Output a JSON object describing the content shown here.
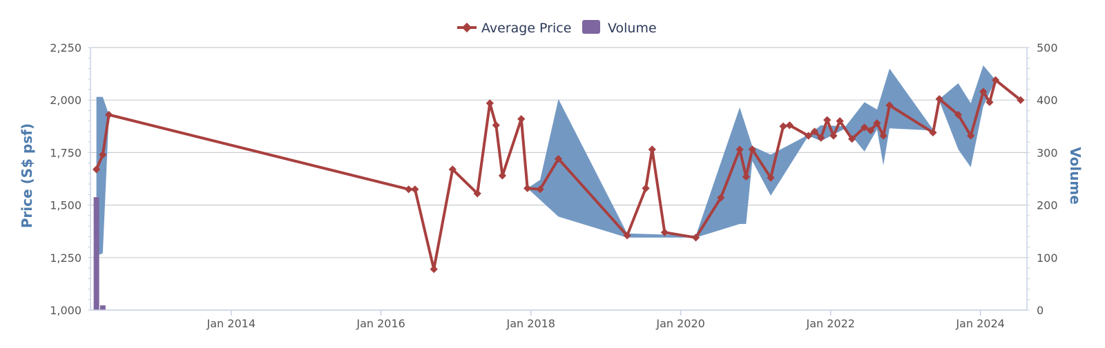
{
  "chart_data": {
    "type": "line",
    "title": "",
    "legend": {
      "placement": "top-center"
    },
    "grid": true,
    "colors": {
      "price": "#a8403f",
      "range": "#6b93c0",
      "volume": "#7e66a0",
      "grid": "#c8ccd2",
      "axis_title": "#4f7cae"
    },
    "y_left": {
      "label": "Price (S$ psf)",
      "range": [
        1000,
        2250
      ],
      "ticks": [
        "1,000",
        "1,250",
        "1,500",
        "1,750",
        "2,000",
        "2,250"
      ]
    },
    "y_right": {
      "label": "Volume",
      "range": [
        0,
        500
      ],
      "ticks": [
        "0",
        "100",
        "200",
        "300",
        "400",
        "500"
      ]
    },
    "x": {
      "range": [
        "2012-02-15",
        "2024-08-15"
      ],
      "ticks": [
        {
          "date": "2014-01-01",
          "label": "Jan 2014"
        },
        {
          "date": "2016-01-01",
          "label": "Jan 2016"
        },
        {
          "date": "2018-01-01",
          "label": "Jan 2018"
        },
        {
          "date": "2020-01-01",
          "label": "Jan 2020"
        },
        {
          "date": "2022-01-01",
          "label": "Jan 2022"
        },
        {
          "date": "2024-01-01",
          "label": "Jan 2024"
        }
      ]
    },
    "series": [
      {
        "name": "Average Price",
        "kind": "line",
        "points": [
          [
            "2012-03",
            1670
          ],
          [
            "2012-04",
            1740
          ],
          [
            "2012-05",
            1930
          ],
          [
            "2016-05",
            1575
          ],
          [
            "2016-06",
            1575
          ],
          [
            "2016-09",
            1195
          ],
          [
            "2016-12",
            1670
          ],
          [
            "2017-04",
            1555
          ],
          [
            "2017-06",
            1985
          ],
          [
            "2017-07",
            1880
          ],
          [
            "2017-08",
            1640
          ],
          [
            "2017-11",
            1910
          ],
          [
            "2017-12",
            1580
          ],
          [
            "2018-02",
            1575
          ],
          [
            "2018-05",
            1720
          ],
          [
            "2019-04",
            1355
          ],
          [
            "2019-07",
            1580
          ],
          [
            "2019-08",
            1765
          ],
          [
            "2019-10",
            1370
          ],
          [
            "2020-03",
            1345
          ],
          [
            "2020-07",
            1535
          ],
          [
            "2020-10",
            1765
          ],
          [
            "2020-11",
            1635
          ],
          [
            "2020-12",
            1765
          ],
          [
            "2021-03",
            1630
          ],
          [
            "2021-05",
            1875
          ],
          [
            "2021-06",
            1880
          ],
          [
            "2021-09",
            1830
          ],
          [
            "2021-10",
            1850
          ],
          [
            "2021-11",
            1820
          ],
          [
            "2021-12",
            1905
          ],
          [
            "2022-01",
            1830
          ],
          [
            "2022-02",
            1900
          ],
          [
            "2022-04",
            1815
          ],
          [
            "2022-06",
            1870
          ],
          [
            "2022-07",
            1855
          ],
          [
            "2022-08",
            1890
          ],
          [
            "2022-09",
            1830
          ],
          [
            "2022-10",
            1975
          ],
          [
            "2023-05",
            1845
          ],
          [
            "2023-06",
            2005
          ],
          [
            "2023-09",
            1930
          ],
          [
            "2023-11",
            1830
          ],
          [
            "2024-01",
            2040
          ],
          [
            "2024-02",
            1990
          ],
          [
            "2024-03",
            2095
          ],
          [
            "2024-07",
            2000
          ]
        ]
      },
      {
        "name": "",
        "kind": "range",
        "upper": [
          [
            "2012-03",
            2015
          ],
          [
            "2012-04",
            2015
          ],
          [
            "2012-05",
            1930
          ],
          [
            "2017-12",
            1580
          ],
          [
            "2018-02",
            1620
          ],
          [
            "2018-05",
            2005
          ],
          [
            "2019-04",
            1365
          ],
          [
            "2020-03",
            1355
          ],
          [
            "2020-10",
            1965
          ],
          [
            "2020-12",
            1780
          ],
          [
            "2021-03",
            1740
          ],
          [
            "2021-09",
            1835
          ],
          [
            "2021-11",
            1880
          ],
          [
            "2022-03",
            1875
          ],
          [
            "2022-06",
            1990
          ],
          [
            "2022-08",
            1955
          ],
          [
            "2022-10",
            2150
          ],
          [
            "2023-05",
            1860
          ],
          [
            "2023-06",
            2005
          ],
          [
            "2023-09",
            2080
          ],
          [
            "2023-11",
            1985
          ],
          [
            "2024-01",
            2165
          ],
          [
            "2024-03",
            2095
          ]
        ],
        "lower": [
          [
            "2012-03",
            1260
          ],
          [
            "2012-04",
            1270
          ],
          [
            "2012-05",
            1930
          ],
          [
            "2017-12",
            1580
          ],
          [
            "2018-05",
            1445
          ],
          [
            "2019-04",
            1345
          ],
          [
            "2020-03",
            1345
          ],
          [
            "2020-10",
            1410
          ],
          [
            "2020-11",
            1410
          ],
          [
            "2020-12",
            1710
          ],
          [
            "2021-03",
            1545
          ],
          [
            "2021-09",
            1830
          ],
          [
            "2021-11",
            1805
          ],
          [
            "2022-03",
            1865
          ],
          [
            "2022-06",
            1755
          ],
          [
            "2022-08",
            1860
          ],
          [
            "2022-09",
            1690
          ],
          [
            "2022-10",
            1865
          ],
          [
            "2023-05",
            1855
          ],
          [
            "2023-06",
            1995
          ],
          [
            "2023-09",
            1765
          ],
          [
            "2023-11",
            1680
          ],
          [
            "2024-01",
            1970
          ],
          [
            "2024-03",
            2095
          ]
        ]
      },
      {
        "name": "Volume",
        "kind": "bar",
        "axis": "right",
        "points": [
          [
            "2012-03",
            215
          ],
          [
            "2012-04",
            9
          ]
        ]
      }
    ]
  }
}
